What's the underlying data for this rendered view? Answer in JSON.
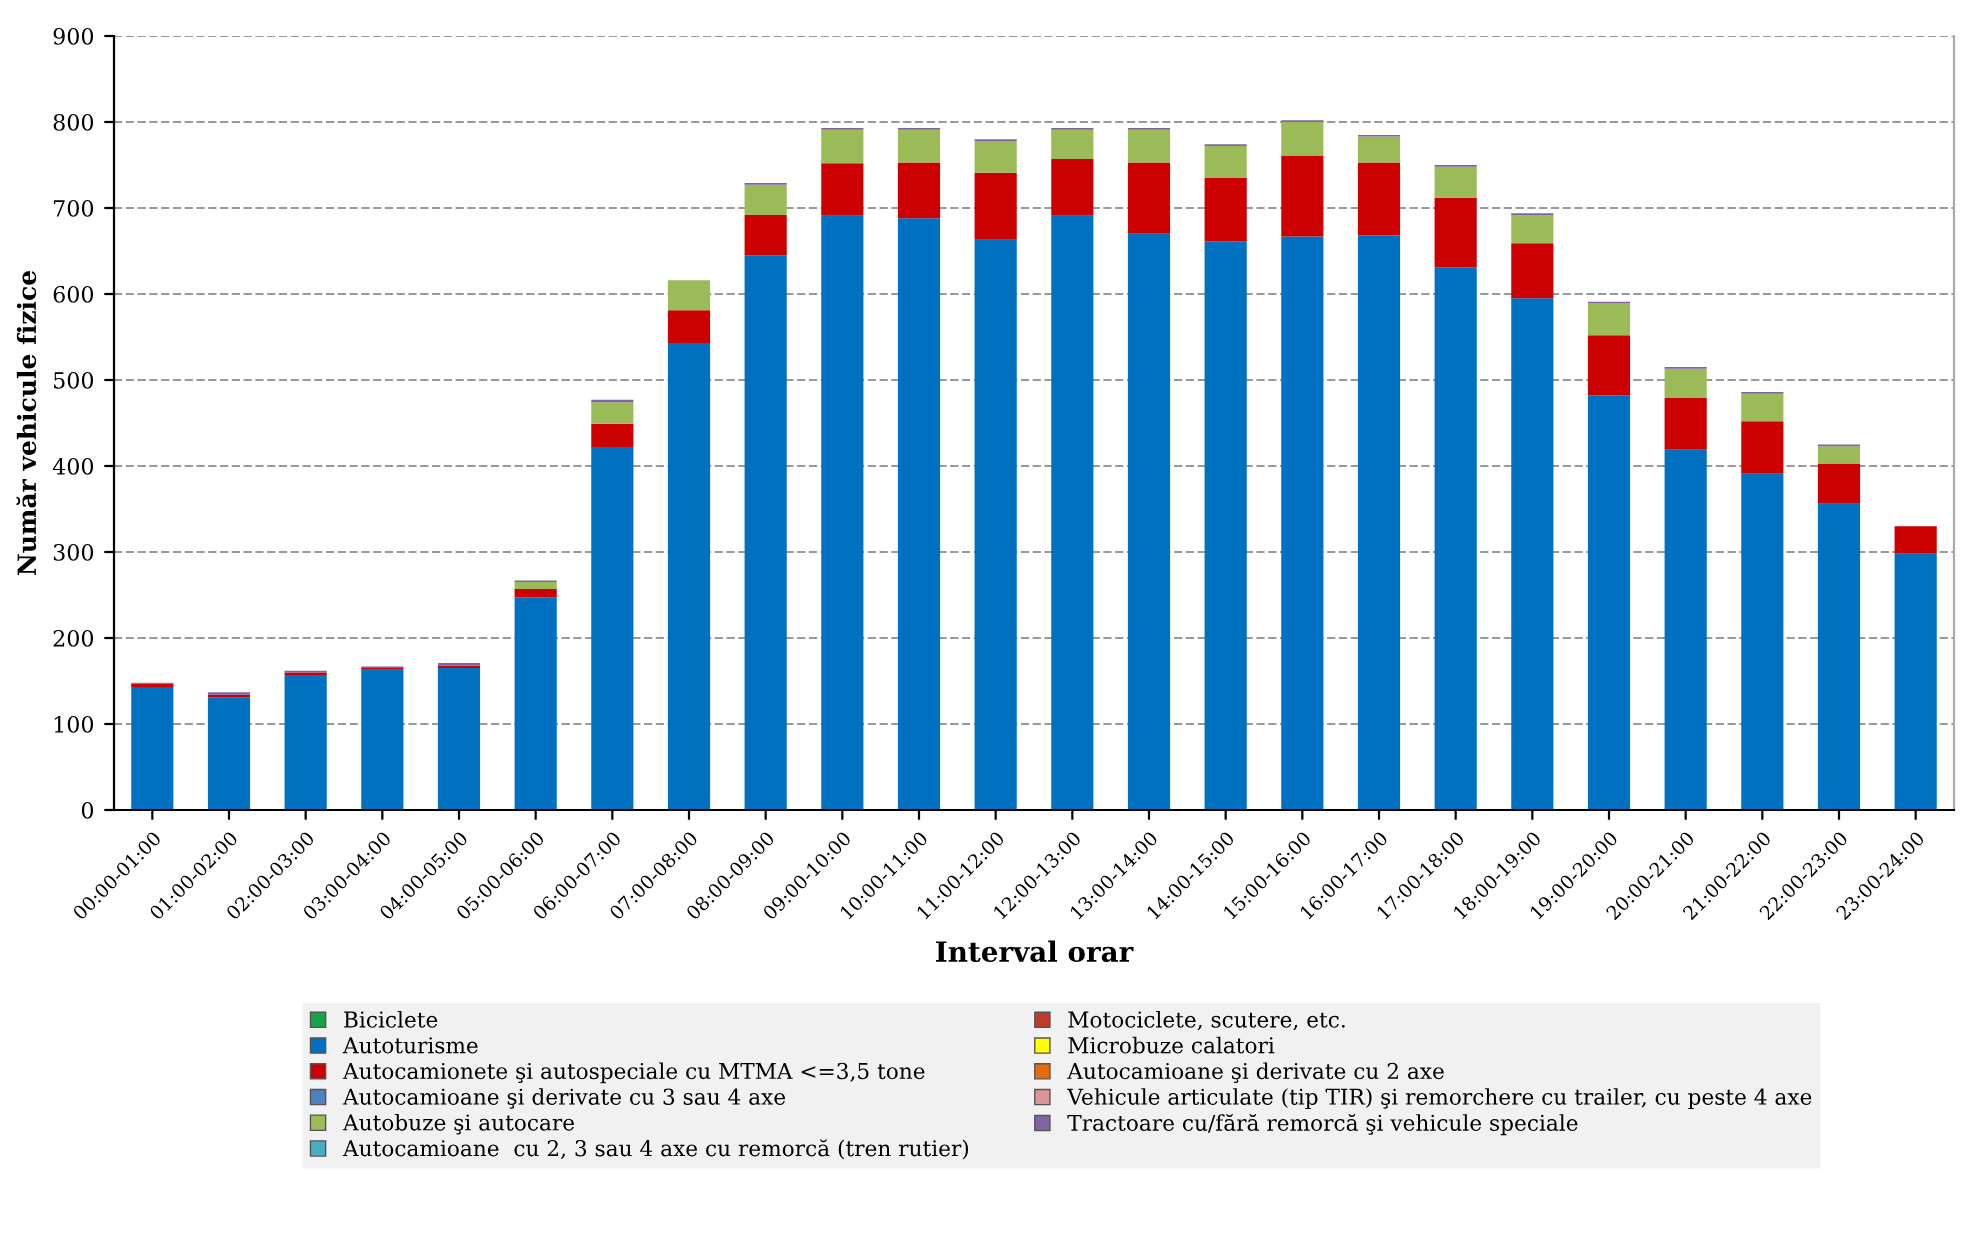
{
  "chart_data": {
    "type": "bar",
    "stacked": true,
    "xlabel": "Interval orar",
    "ylabel": "Număr vehicule fizice",
    "categories": [
      "00:00-01:00",
      "01:00-02:00",
      "02:00-03:00",
      "03:00-04:00",
      "04:00-05:00",
      "05:00-06:00",
      "06:00-07:00",
      "07:00-08:00",
      "08:00-09:00",
      "09:00-10:00",
      "10:00-11:00",
      "11:00-12:00",
      "12:00-13:00",
      "13:00-14:00",
      "14:00-15:00",
      "15:00-16:00",
      "16:00-17:00",
      "17:00-18:00",
      "18:00-19:00",
      "19:00-20:00",
      "20:00-21:00",
      "21:00-22:00",
      "22:00-23:00",
      "23:00-24:00"
    ],
    "series": [
      {
        "name": "Biciclete",
        "color": "#16a34a",
        "values": [
          0,
          0,
          0,
          0,
          0,
          0,
          0,
          0,
          0,
          0,
          0,
          0,
          0,
          0,
          0,
          0,
          0,
          0,
          0,
          0,
          0,
          0,
          0,
          0
        ]
      },
      {
        "name": "Motociclete, scutere, etc.",
        "color": "#c0392b",
        "values": [
          0,
          0,
          0,
          0,
          0,
          0,
          0,
          0,
          0,
          0,
          0,
          0,
          0,
          0,
          0,
          0,
          0,
          0,
          0,
          0,
          0,
          0,
          0,
          0
        ]
      },
      {
        "name": "Autoturisme",
        "color": "#0070c0",
        "values": [
          143,
          131,
          157,
          163,
          165,
          247,
          422,
          543,
          645,
          691,
          688,
          663,
          691,
          670,
          661,
          667,
          668,
          631,
          595,
          482,
          419,
          391,
          356,
          298
        ]
      },
      {
        "name": "Microbuze calatori",
        "color": "#ffff00",
        "values": [
          0,
          0,
          0,
          0,
          0,
          0,
          0,
          0,
          0,
          0,
          0,
          0,
          0,
          0,
          0,
          0,
          0,
          0,
          0,
          0,
          0,
          0,
          0,
          0
        ]
      },
      {
        "name": "Autocamionete şi autospeciale cu MTMA <=3,5 tone",
        "color": "#cc0000",
        "values": [
          4,
          3,
          3,
          2,
          3,
          10,
          27,
          38,
          47,
          61,
          65,
          78,
          66,
          83,
          74,
          94,
          85,
          81,
          64,
          70,
          60,
          61,
          47,
          32
        ]
      },
      {
        "name": "Autocamioane şi derivate cu 2 axe",
        "color": "#e46c0a",
        "values": [
          0,
          0,
          0,
          0,
          0,
          0,
          0,
          0,
          0,
          0,
          0,
          0,
          0,
          0,
          0,
          0,
          0,
          0,
          0,
          0,
          0,
          0,
          0,
          0
        ]
      },
      {
        "name": "Autocamioane şi derivate cu 3 sau 4 axe",
        "color": "#4f81bd",
        "values": [
          0,
          0,
          0,
          0,
          0,
          0,
          0,
          0,
          0,
          0,
          0,
          0,
          0,
          0,
          0,
          0,
          0,
          0,
          0,
          0,
          0,
          0,
          0,
          0
        ]
      },
      {
        "name": "Vehicule articulate (tip TIR) şi remorchere cu trailer, cu peste 4 axe",
        "color": "#d99694",
        "values": [
          0,
          0,
          0,
          0,
          0,
          0,
          0,
          0,
          0,
          0,
          0,
          0,
          0,
          0,
          0,
          0,
          0,
          0,
          0,
          0,
          0,
          0,
          0,
          0
        ]
      },
      {
        "name": "Autobuze şi autocare",
        "color": "#9bbb59",
        "values": [
          0,
          0,
          0,
          0,
          0,
          8,
          25,
          35,
          35,
          39,
          38,
          37,
          34,
          38,
          37,
          39,
          30,
          36,
          33,
          37,
          34,
          32,
          20,
          0
        ]
      },
      {
        "name": "Tractoare cu/fără remorcă şi vehicule speciale",
        "color": "#8064a2",
        "values": [
          1,
          3,
          2,
          2,
          3,
          2,
          3,
          0,
          2,
          2,
          2,
          2,
          2,
          2,
          2,
          2,
          2,
          2,
          2,
          2,
          2,
          2,
          2,
          0
        ]
      },
      {
        "name": "Autocamioane  cu 2, 3 sau 4 axe cu remorcă (tren rutier)",
        "color": "#4bacc6",
        "values": [
          0,
          0,
          0,
          0,
          0,
          0,
          0,
          0,
          0,
          0,
          0,
          0,
          0,
          0,
          0,
          0,
          0,
          0,
          0,
          0,
          0,
          0,
          0,
          0
        ]
      }
    ],
    "ylim": [
      0,
      900
    ],
    "yticks": [
      0,
      100,
      200,
      300,
      400,
      500,
      600,
      700,
      800,
      900
    ],
    "grid": "y",
    "legend": "bottom"
  }
}
